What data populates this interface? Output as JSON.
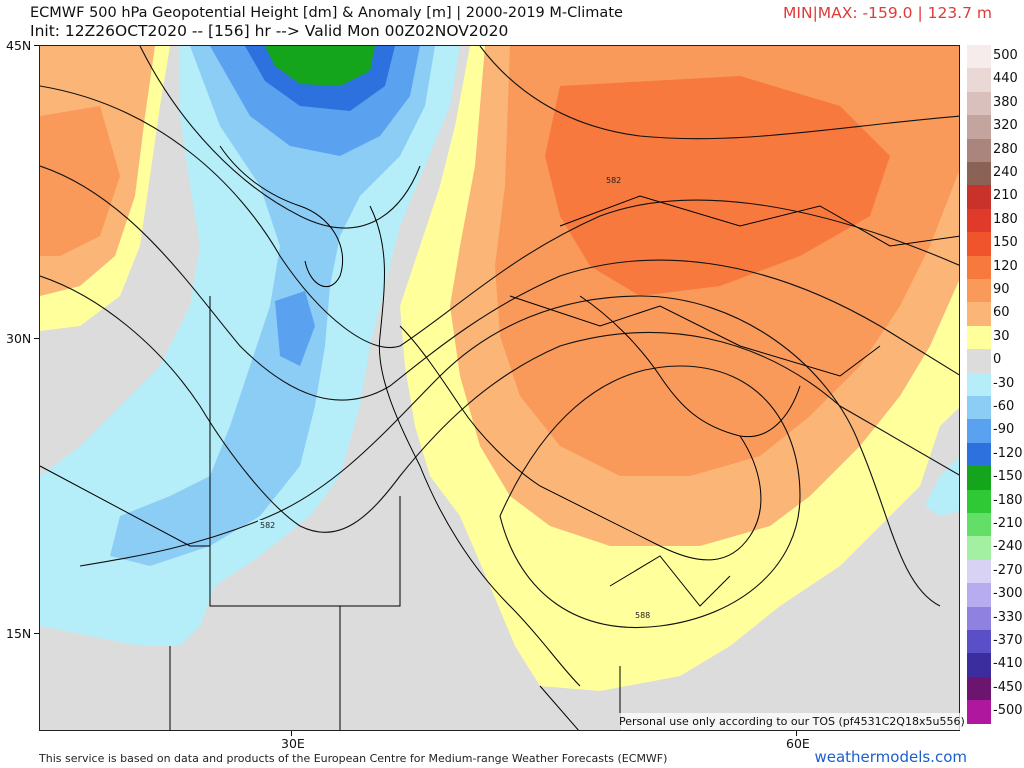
{
  "header": {
    "title_line1": "ECMWF 500 hPa Geopotential Height [dm] & Anomaly [m] | 2000-2019 M-Climate",
    "title_line2": "Init: 12Z26OCT2020 -- [156] hr --> Valid Mon 00Z02NOV2020",
    "minmax": "MIN|MAX: -159.0 | 123.7 m"
  },
  "axes": {
    "lat_labels": [
      "45N",
      "30N",
      "15N"
    ],
    "lon_labels": [
      "30E",
      "60E"
    ]
  },
  "contour_labels": [
    "582",
    "582",
    "588"
  ],
  "colorbar": {
    "labels": [
      "500",
      "440",
      "380",
      "320",
      "280",
      "240",
      "210",
      "180",
      "150",
      "120",
      "90",
      "60",
      "30",
      "0",
      "-30",
      "-60",
      "-90",
      "-120",
      "-150",
      "-180",
      "-210",
      "-240",
      "-270",
      "-300",
      "-330",
      "-370",
      "-410",
      "-450",
      "-500"
    ],
    "colors": [
      "#f6ecec",
      "#ead8d6",
      "#d9c0bc",
      "#c4a49e",
      "#a9857d",
      "#8a6356",
      "#c9312b",
      "#e03a2a",
      "#f0542c",
      "#f7793e",
      "#f9995a",
      "#fbb577",
      "#ffff9c",
      "#dcdcdc",
      "#b5eef8",
      "#8ccdf6",
      "#5aa2ef",
      "#2c71dd",
      "#15a51d",
      "#2ec934",
      "#63df67",
      "#a3f0a3",
      "#d8d3f5",
      "#b7acef",
      "#8f81e0",
      "#5a4fc6",
      "#3b2d9e",
      "#6b156f",
      "#b0179f"
    ]
  },
  "tos_note": "Personal use only according to our TOS (pf4531C2Q18x5u556)",
  "footer": "This service is based on data and products of the European Centre for Medium-range Weather Forecasts (ECMWF)",
  "brand": "weathermodels.com"
}
